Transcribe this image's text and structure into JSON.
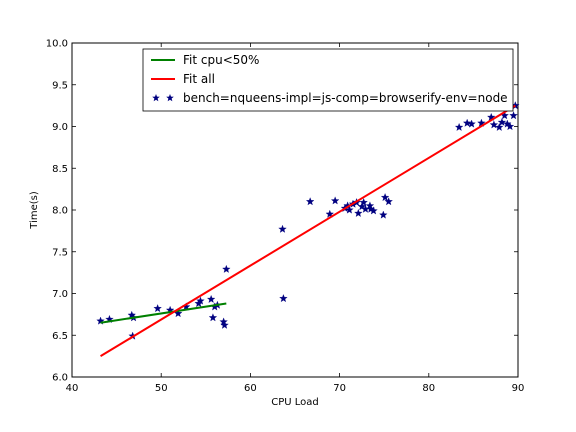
{
  "chart_data": {
    "type": "scatter",
    "xlabel": "CPU Load",
    "ylabel": "Time(s)",
    "xlim": [
      40,
      90
    ],
    "ylim": [
      6.0,
      10.0
    ],
    "xticks": [
      "40",
      "50",
      "60",
      "70",
      "80",
      "90"
    ],
    "yticks": [
      "6.0",
      "6.5",
      "7.0",
      "7.5",
      "8.0",
      "8.5",
      "9.0",
      "9.5",
      "10.0"
    ],
    "grid": false,
    "legend_position": "top-center",
    "series": [
      {
        "name": "Fit cpu<50%",
        "kind": "line",
        "color": "#008000",
        "x": [
          43.2,
          57.3
        ],
        "y": [
          6.65,
          6.88
        ]
      },
      {
        "name": "Fit all",
        "kind": "line",
        "color": "#ff0000",
        "x": [
          43.2,
          89.7
        ],
        "y": [
          6.25,
          9.25
        ]
      },
      {
        "name": "bench=nqueens-impl=js-comp=browserify-env=node",
        "kind": "scatter",
        "marker": "star",
        "color": "#000080",
        "x": [
          43.2,
          44.2,
          46.7,
          46.8,
          46.9,
          49.6,
          51.0,
          51.9,
          52.8,
          54.2,
          54.4,
          55.6,
          55.8,
          56.0,
          56.3,
          57.0,
          57.1,
          57.3,
          63.6,
          63.7,
          66.7,
          68.9,
          69.5,
          70.6,
          70.9,
          71.1,
          71.5,
          71.9,
          72.1,
          72.5,
          72.7,
          72.9,
          73.4,
          73.5,
          73.8,
          74.9,
          75.1,
          75.5,
          83.4,
          84.3,
          84.8,
          85.9,
          87.0,
          87.3,
          87.9,
          88.2,
          88.5,
          88.8,
          89.1,
          89.5,
          89.7
        ],
        "y": [
          6.67,
          6.69,
          6.74,
          6.49,
          6.71,
          6.82,
          6.8,
          6.76,
          6.84,
          6.88,
          6.91,
          6.93,
          6.71,
          6.84,
          6.86,
          6.66,
          6.62,
          7.29,
          7.77,
          6.94,
          8.1,
          7.95,
          8.11,
          8.02,
          8.05,
          8.0,
          8.07,
          8.09,
          7.96,
          8.04,
          8.09,
          8.01,
          8.05,
          8.01,
          7.99,
          7.94,
          8.15,
          8.1,
          8.99,
          9.04,
          9.03,
          9.04,
          9.11,
          9.02,
          8.99,
          9.05,
          9.13,
          9.03,
          9.0,
          9.13,
          9.25
        ]
      }
    ]
  }
}
